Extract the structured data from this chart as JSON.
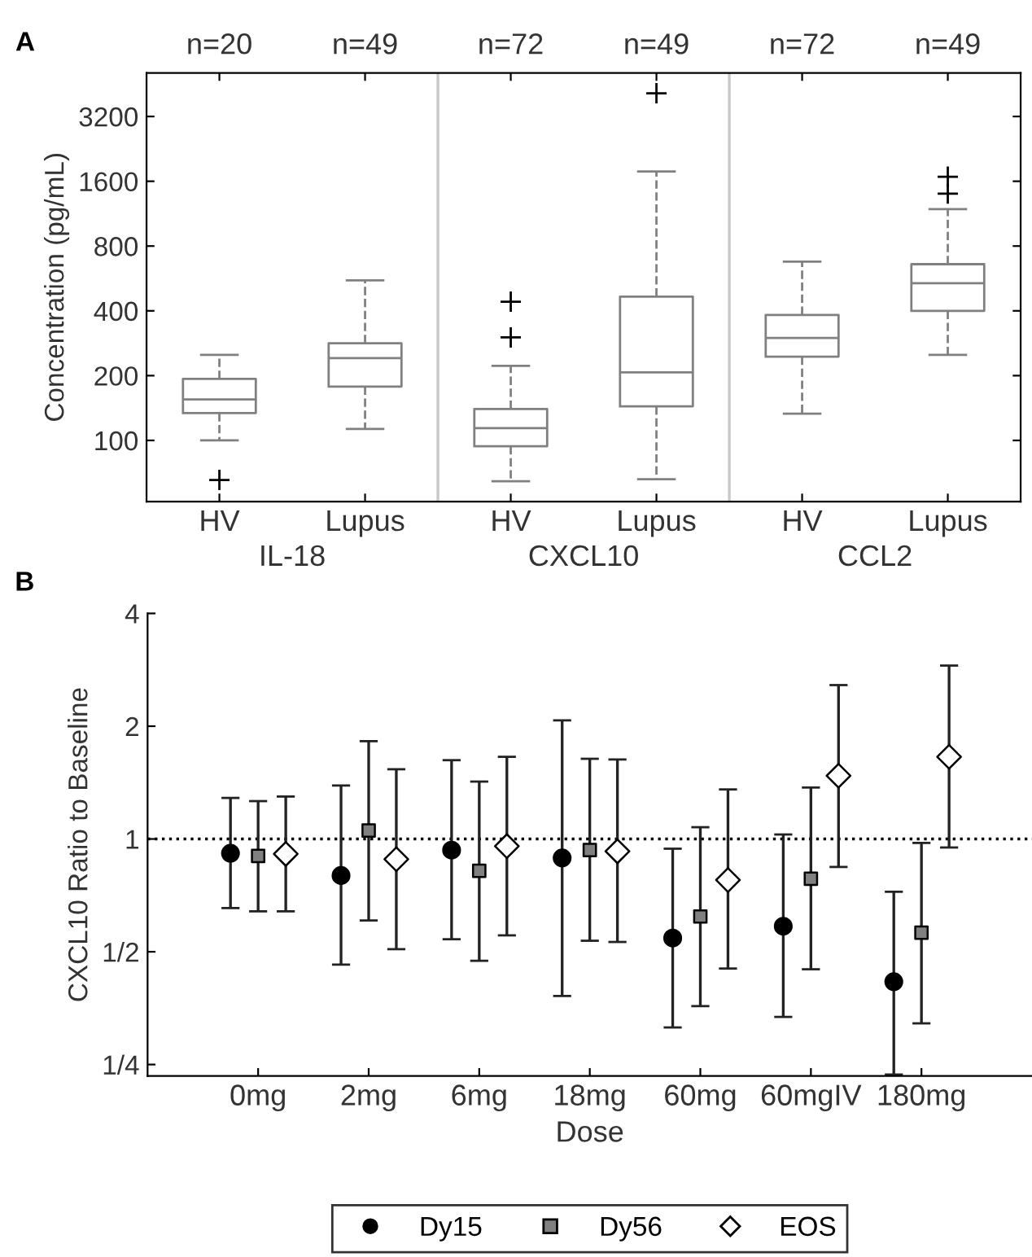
{
  "chart_data": [
    {
      "type": "box",
      "title": "A",
      "ylabel": "Concentration (pg/mL)",
      "categories": [
        "HV",
        "Lupus",
        "HV",
        "Lupus",
        "HV",
        "Lupus"
      ],
      "color": "#808080",
      "log": "y",
      "ylim": [
        52,
        5100
      ],
      "yticks": [
        100,
        200,
        400,
        800,
        1600,
        3200
      ],
      "boxes": [
        {
          "low": 100,
          "q1": 134,
          "median": 155,
          "q3": 193,
          "high": 250,
          "outliers": [
            65.5
          ]
        },
        {
          "low": 113,
          "q1": 178,
          "median": 241,
          "q3": 283,
          "high": 554
        },
        {
          "low": 64.6,
          "q1": 94,
          "median": 114,
          "q3": 140,
          "high": 222,
          "outliers": [
            301,
            441
          ]
        },
        {
          "low": 66,
          "q1": 144,
          "median": 207,
          "q3": 466,
          "high": 1775,
          "outliers": [
            4100
          ]
        },
        {
          "low": 133,
          "q1": 245,
          "median": 299,
          "q3": 383,
          "high": 677
        },
        {
          "low": 250,
          "q1": 400,
          "median": 538,
          "q3": 659,
          "high": 1188,
          "outliers": [
            1402,
            1680
          ]
        }
      ],
      "annotations": [
        "n=20",
        "n=49",
        "n=72",
        "n=49",
        "n=72",
        "n=49",
        "IL-18",
        "CXCL10",
        "CCL2"
      ]
    },
    {
      "type": "scatter",
      "title": "B",
      "xlabel": "Dose",
      "ylabel": "CXCL10 Ratio to Baseline",
      "categories": [
        "0mg",
        "2mg",
        "6mg",
        "18mg",
        "60mg",
        "60mgIV",
        "180mg"
      ],
      "log": "y",
      "ylim": [
        0.233,
        4
      ],
      "yticks": [
        {
          "value": 0.25,
          "label": "1/4"
        },
        {
          "value": 0.5,
          "label": "1/2"
        },
        1,
        2,
        4
      ],
      "legend": "bottom",
      "ref_lines": [
        {
          "axis": "y",
          "value": 1,
          "label": null,
          "color": "#000000",
          "line_style": "dotted"
        }
      ],
      "series": [
        {
          "name": "Dy15",
          "color": "#000000",
          "marker": "circle",
          "values": [
            0.916,
            0.799,
            0.934,
            0.89,
            0.544,
            0.585,
            0.416
          ],
          "errors": [
            [
              0.654,
              1.287
            ],
            [
              0.462,
              1.389
            ],
            [
              0.54,
              1.623
            ],
            [
              0.381,
              2.073
            ],
            [
              0.314,
              0.942
            ],
            [
              0.335,
              1.028
            ],
            [
              0.235,
              0.723
            ]
          ]
        },
        {
          "name": "Dy56",
          "color": "#808080",
          "marker": "square",
          "values": [
            0.901,
            1.053,
            0.822,
            0.934,
            0.621,
            0.783,
            0.562
          ],
          "errors": [
            [
              0.641,
              1.262
            ],
            [
              0.606,
              1.824
            ],
            [
              0.473,
              1.423
            ],
            [
              0.535,
              1.637
            ],
            [
              0.358,
              1.075
            ],
            [
              0.449,
              1.372
            ],
            [
              0.322,
              0.976
            ]
          ]
        },
        {
          "name": "EOS",
          "color": "#ffffff",
          "marker": "diamond",
          "values": [
            0.912,
            0.883,
            0.957,
            0.927,
            0.777,
            1.475,
            1.657
          ],
          "errors": [
            [
              0.641,
              1.298
            ],
            [
              0.508,
              1.535
            ],
            [
              0.553,
              1.657
            ],
            [
              0.531,
              1.63
            ],
            [
              0.451,
              1.356
            ],
            [
              0.842,
              2.575
            ],
            [
              0.949,
              2.903
            ]
          ]
        }
      ]
    }
  ]
}
